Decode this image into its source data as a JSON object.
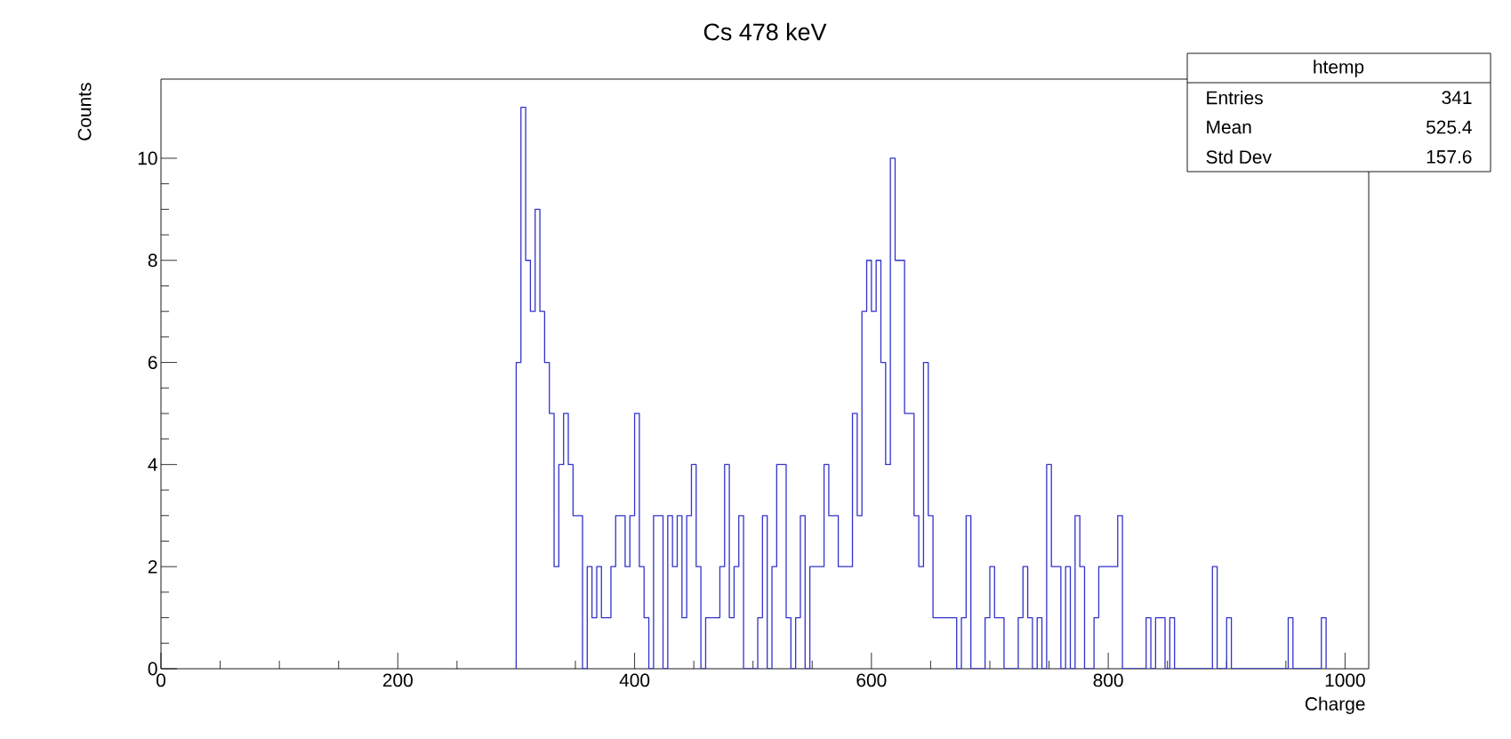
{
  "chart_data": {
    "type": "histogram",
    "title": "Cs 478 keV",
    "xlabel": "Charge",
    "ylabel": "Counts",
    "color": "#3333cc",
    "bins": [
      300,
      304,
      308,
      312,
      316,
      320,
      324,
      328,
      332,
      336,
      340,
      344,
      348,
      352,
      356,
      360,
      364,
      368,
      372,
      376,
      380,
      384,
      388,
      392,
      396,
      400,
      404,
      408,
      412,
      416,
      420,
      424,
      428,
      432,
      436,
      440,
      444,
      448,
      452,
      456,
      460,
      464,
      468,
      472,
      476,
      480,
      484,
      488,
      492,
      496,
      500,
      504,
      508,
      512,
      516,
      520,
      524,
      528,
      532,
      536,
      540,
      544,
      548,
      552,
      556,
      560,
      564,
      568,
      572,
      576,
      580,
      584,
      588,
      592,
      596,
      600,
      604,
      608,
      612,
      616,
      620,
      624,
      628,
      632,
      636,
      640,
      644,
      648,
      652,
      656,
      660,
      664,
      668,
      672,
      676,
      680,
      684,
      688,
      692,
      696,
      700,
      704,
      708,
      712,
      716,
      720,
      724,
      728,
      732,
      736,
      740,
      744,
      748,
      752,
      756,
      760,
      764,
      768,
      772,
      776,
      780,
      784,
      788,
      792,
      796,
      800,
      804,
      808,
      812,
      816,
      820,
      824,
      828,
      832,
      836,
      840,
      844,
      848,
      852,
      856,
      860,
      864,
      868,
      872,
      876,
      880,
      884,
      888,
      892,
      896,
      900,
      904,
      908,
      912,
      916,
      920,
      924,
      928,
      932,
      936,
      940,
      944,
      948,
      952,
      956,
      960,
      964,
      968,
      972,
      976,
      980,
      984
    ],
    "values": [
      6,
      11,
      8,
      7,
      9,
      7,
      6,
      5,
      2,
      4,
      5,
      4,
      3,
      3,
      0,
      2,
      1,
      2,
      1,
      1,
      2,
      3,
      3,
      2,
      3,
      5,
      2,
      1,
      0,
      3,
      3,
      0,
      3,
      2,
      3,
      1,
      3,
      4,
      2,
      0,
      1,
      1,
      1,
      2,
      4,
      1,
      2,
      3,
      0,
      0,
      0,
      1,
      3,
      0,
      2,
      4,
      4,
      1,
      0,
      1,
      3,
      0,
      2,
      2,
      2,
      4,
      3,
      3,
      2,
      2,
      2,
      5,
      3,
      7,
      8,
      7,
      8,
      6,
      4,
      10,
      8,
      8,
      5,
      5,
      3,
      2,
      6,
      3,
      1,
      1,
      1,
      1,
      1,
      0,
      1,
      3,
      0,
      0,
      0,
      1,
      2,
      1,
      1,
      0,
      0,
      0,
      1,
      2,
      1,
      0,
      1,
      0,
      4,
      2,
      2,
      0,
      2,
      0,
      3,
      2,
      0,
      0,
      1,
      2,
      2,
      2,
      2,
      3,
      0,
      0,
      0,
      0,
      0,
      1,
      0,
      1,
      1,
      0,
      1,
      0,
      0,
      0,
      0,
      0,
      0,
      0,
      0,
      2,
      0,
      0,
      1,
      0,
      0,
      0,
      0,
      0,
      0,
      0,
      0,
      0,
      0,
      0,
      0,
      1,
      0,
      0,
      0,
      0,
      0,
      0,
      1
    ],
    "xlim": [
      0,
      1020
    ],
    "ylim": [
      0,
      11.55
    ],
    "xticks": [
      0,
      200,
      400,
      600,
      800,
      1000
    ],
    "yticks": [
      0,
      2,
      4,
      6,
      8,
      10
    ],
    "annotations": [
      "htemp",
      "Entries",
      "341",
      "Mean",
      "525.4",
      "Std Dev",
      "157.6"
    ]
  }
}
